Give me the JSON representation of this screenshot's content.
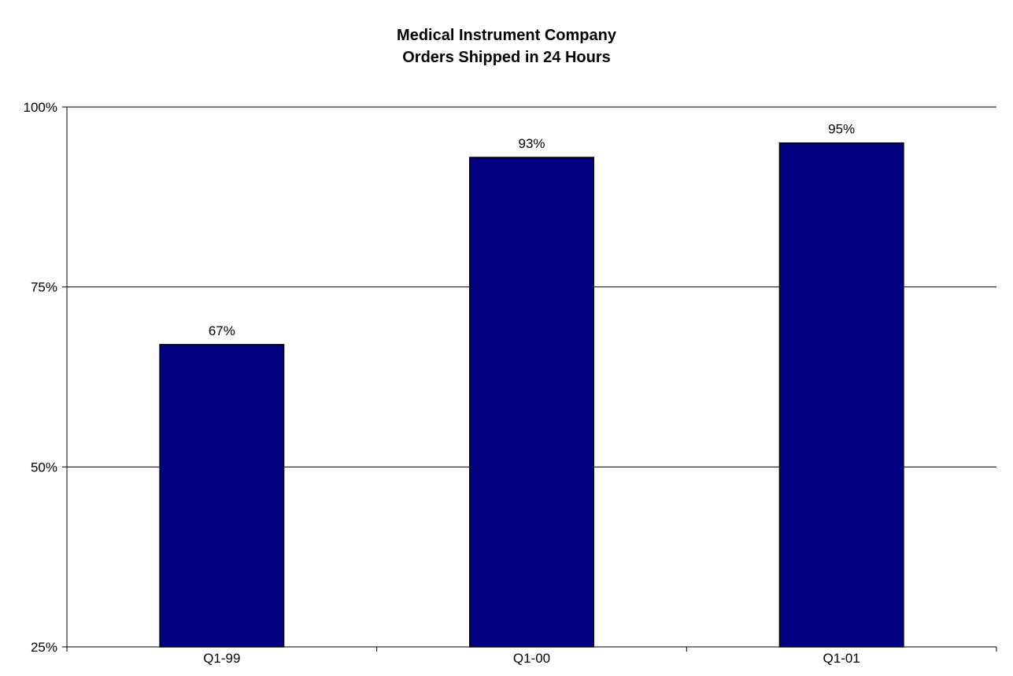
{
  "chart_data": {
    "type": "bar",
    "title": "Medical Instrument Company",
    "subtitle": "Orders Shipped in 24 Hours",
    "xlabel": "",
    "ylabel": "",
    "categories": [
      "Q1-99",
      "Q1-00",
      "Q1-01"
    ],
    "values": [
      67,
      93,
      95
    ],
    "data_labels": [
      "67%",
      "93%",
      "95%"
    ],
    "ylim": [
      25,
      100
    ],
    "yticks": [
      25,
      50,
      75,
      100
    ],
    "ytick_labels": [
      "25%",
      "50%",
      "75%",
      "100%"
    ],
    "grid": true,
    "legend": "none",
    "bar_color": "#000080",
    "bar_outline": "#000000"
  }
}
